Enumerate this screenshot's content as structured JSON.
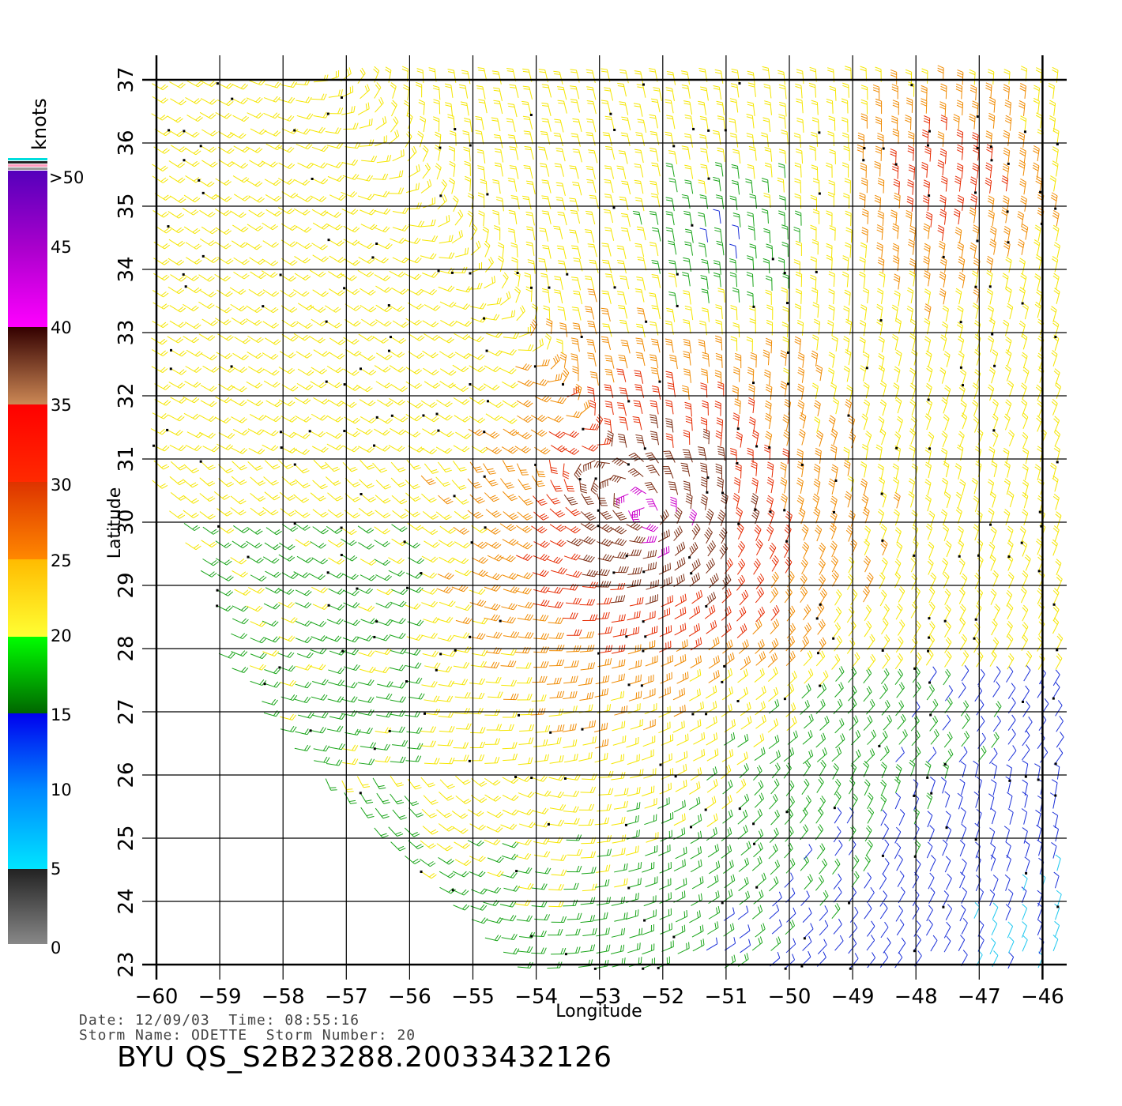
{
  "map": {
    "x_axis_label": "Longitude",
    "y_axis_label": "Latitude",
    "lon_ticks": [
      "-60",
      "-59",
      "-58",
      "-57",
      "-56",
      "-55",
      "-54",
      "-53",
      "-52",
      "-51",
      "-50",
      "-49",
      "-48",
      "-47",
      "-46"
    ],
    "lat_ticks": [
      "23",
      "24",
      "25",
      "26",
      "27",
      "28",
      "29",
      "30",
      "31",
      "32",
      "33",
      "34",
      "35",
      "36",
      "37"
    ],
    "lon_range": [
      -60,
      -46
    ],
    "lat_range": [
      23,
      37
    ]
  },
  "colorbar": {
    "title": "knots",
    "labels": [
      ">50",
      "45",
      "40",
      "35",
      "30",
      "25",
      "20",
      "15",
      "10",
      "5",
      "0"
    ],
    "colors": {
      "0_5": [
        "#888888",
        "#222222"
      ],
      "5_10": [
        "#00e5ff",
        "#0077ff"
      ],
      "10_15": [
        "#0088ff",
        "#0000ee"
      ],
      "15_20": [
        "#006600",
        "#00ff00"
      ],
      "20_25": [
        "#ffff33",
        "#ffbb00"
      ],
      "25_30": [
        "#ff8800",
        "#dd3300"
      ],
      "30_35": [
        "#ff2200",
        "#ff0000"
      ],
      "35_40": [
        "#cc8855",
        "#330000"
      ],
      "40_45": [
        "#ff00ff",
        "#aa00cc"
      ],
      "45_50": [
        "#aa00cc",
        "#5500bb"
      ]
    }
  },
  "footer": {
    "line1": "Date: 12/09/03  Time: 08:55:16",
    "line2": "Storm Name: ODETTE  Storm Number: 20",
    "title": "BYU QS_S2B23288.20033432126"
  }
}
